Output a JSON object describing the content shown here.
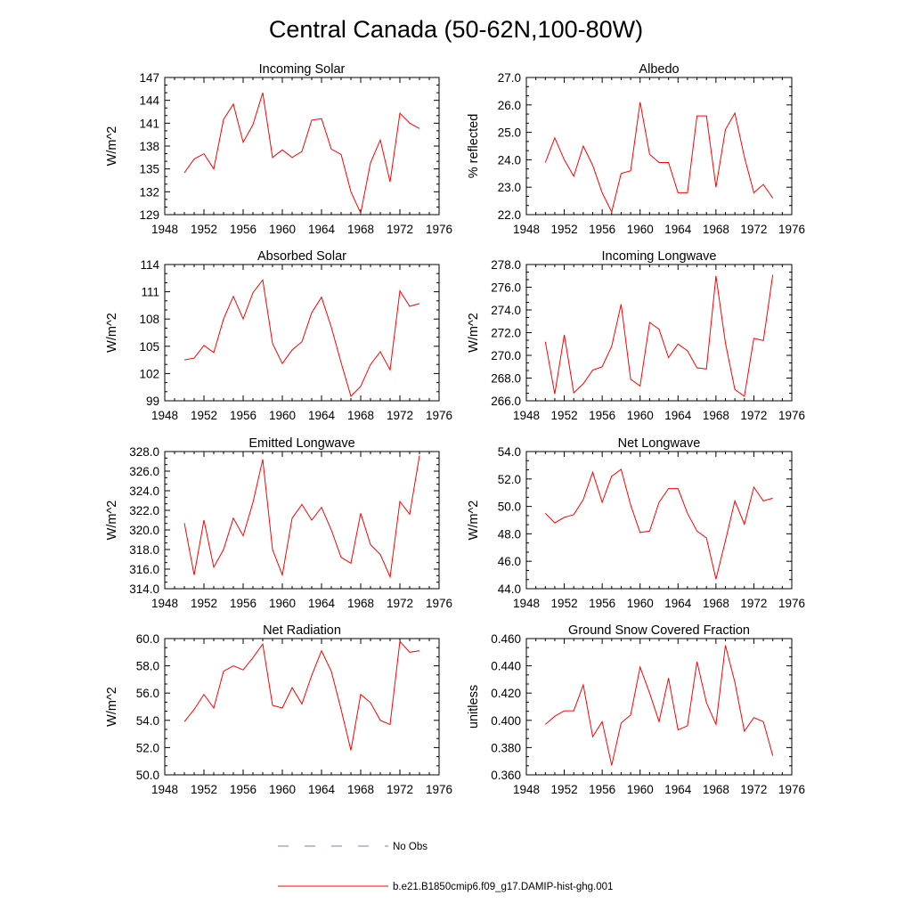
{
  "title": "Central Canada (50-62N,100-80W)",
  "chart_data": [
    {
      "type": "line",
      "title": "Incoming Solar",
      "ylabel": "W/m^2",
      "xlim": [
        1948,
        1976
      ],
      "xticks": [
        "1948",
        "1952",
        "1956",
        "1960",
        "1964",
        "1968",
        "1972",
        "1976"
      ],
      "ylim": [
        129,
        147
      ],
      "yticks": [
        "129",
        "132",
        "135",
        "138",
        "141",
        "144",
        "147"
      ],
      "series": [
        {
          "x": [
            1950,
            1951,
            1952,
            1953,
            1954,
            1955,
            1956,
            1957,
            1958,
            1959,
            1960,
            1961,
            1962,
            1963,
            1964,
            1965,
            1966,
            1967,
            1968,
            1969,
            1970,
            1971,
            1972,
            1973,
            1974
          ],
          "values": [
            134.5,
            136.3,
            137.0,
            135.0,
            141.5,
            143.5,
            138.5,
            140.8,
            145.0,
            136.5,
            137.5,
            136.5,
            137.3,
            141.4,
            141.6,
            137.6,
            136.9,
            132.0,
            129.2,
            135.8,
            138.8,
            133.3,
            142.3,
            141.0,
            140.3
          ]
        }
      ]
    },
    {
      "type": "line",
      "title": "Albedo",
      "ylabel": "% reflected",
      "xlim": [
        1948,
        1976
      ],
      "xticks": [
        "1948",
        "1952",
        "1956",
        "1960",
        "1964",
        "1968",
        "1972",
        "1976"
      ],
      "ylim": [
        22.0,
        27.0
      ],
      "yticks": [
        "22.0",
        "23.0",
        "24.0",
        "25.0",
        "26.0",
        "27.0"
      ],
      "series": [
        {
          "x": [
            1950,
            1951,
            1952,
            1953,
            1954,
            1955,
            1956,
            1957,
            1958,
            1959,
            1960,
            1961,
            1962,
            1963,
            1964,
            1965,
            1966,
            1967,
            1968,
            1969,
            1970,
            1971,
            1972,
            1973,
            1974
          ],
          "values": [
            23.9,
            24.8,
            24.0,
            23.4,
            24.5,
            23.8,
            22.8,
            22.1,
            23.5,
            23.6,
            26.1,
            24.2,
            23.9,
            23.9,
            22.8,
            22.8,
            25.6,
            25.6,
            23.0,
            25.1,
            25.7,
            24.1,
            22.8,
            23.1,
            22.6
          ]
        }
      ]
    },
    {
      "type": "line",
      "title": "Absorbed Solar",
      "ylabel": "W/m^2",
      "xlim": [
        1948,
        1976
      ],
      "xticks": [
        "1948",
        "1952",
        "1956",
        "1960",
        "1964",
        "1968",
        "1972",
        "1976"
      ],
      "ylim": [
        99,
        114
      ],
      "yticks": [
        "99",
        "102",
        "105",
        "108",
        "111",
        "114"
      ],
      "series": [
        {
          "x": [
            1950,
            1951,
            1952,
            1953,
            1954,
            1955,
            1956,
            1957,
            1958,
            1959,
            1960,
            1961,
            1962,
            1963,
            1964,
            1965,
            1966,
            1967,
            1968,
            1969,
            1970,
            1971,
            1972,
            1973,
            1974
          ],
          "values": [
            103.5,
            103.7,
            105.1,
            104.3,
            108.0,
            110.5,
            108.0,
            110.9,
            112.3,
            105.3,
            103.1,
            104.6,
            105.5,
            108.7,
            110.4,
            107.1,
            103.2,
            99.5,
            100.6,
            103.0,
            104.4,
            102.4,
            111.1,
            109.4,
            109.7
          ]
        }
      ]
    },
    {
      "type": "line",
      "title": "Incoming Longwave",
      "ylabel": "W/m^2",
      "xlim": [
        1948,
        1976
      ],
      "xticks": [
        "1948",
        "1952",
        "1956",
        "1960",
        "1964",
        "1968",
        "1972",
        "1976"
      ],
      "ylim": [
        266.0,
        278.0
      ],
      "yticks": [
        "266.0",
        "268.0",
        "270.0",
        "272.0",
        "274.0",
        "276.0",
        "278.0"
      ],
      "series": [
        {
          "x": [
            1950,
            1951,
            1952,
            1953,
            1954,
            1955,
            1956,
            1957,
            1958,
            1959,
            1960,
            1961,
            1962,
            1963,
            1964,
            1965,
            1966,
            1967,
            1968,
            1969,
            1970,
            1971,
            1972,
            1973,
            1974
          ],
          "values": [
            271.2,
            266.6,
            271.8,
            266.7,
            267.5,
            268.7,
            269.0,
            270.8,
            274.5,
            267.9,
            267.3,
            272.9,
            272.3,
            269.8,
            271.0,
            270.4,
            268.9,
            268.8,
            277.0,
            271.1,
            267.0,
            266.4,
            271.5,
            271.3,
            277.1
          ]
        }
      ]
    },
    {
      "type": "line",
      "title": "Emitted Longwave",
      "ylabel": "W/m^2",
      "xlim": [
        1948,
        1976
      ],
      "xticks": [
        "1948",
        "1952",
        "1956",
        "1960",
        "1964",
        "1968",
        "1972",
        "1976"
      ],
      "ylim": [
        314.0,
        328.0
      ],
      "yticks": [
        "314.0",
        "316.0",
        "318.0",
        "320.0",
        "322.0",
        "324.0",
        "326.0",
        "328.0"
      ],
      "series": [
        {
          "x": [
            1950,
            1951,
            1952,
            1953,
            1954,
            1955,
            1956,
            1957,
            1958,
            1959,
            1960,
            1961,
            1962,
            1963,
            1964,
            1965,
            1966,
            1967,
            1968,
            1969,
            1970,
            1971,
            1972,
            1973,
            1974
          ],
          "values": [
            320.7,
            315.4,
            321.0,
            316.2,
            318.0,
            321.2,
            319.4,
            322.8,
            327.2,
            318.0,
            315.4,
            321.2,
            322.6,
            321.0,
            322.3,
            320.0,
            317.2,
            316.6,
            321.7,
            318.5,
            317.5,
            315.2,
            322.9,
            321.6,
            327.6
          ]
        }
      ]
    },
    {
      "type": "line",
      "title": "Net Longwave",
      "ylabel": "W/m^2",
      "xlim": [
        1948,
        1976
      ],
      "xticks": [
        "1948",
        "1952",
        "1956",
        "1960",
        "1964",
        "1968",
        "1972",
        "1976"
      ],
      "ylim": [
        44.0,
        54.0
      ],
      "yticks": [
        "44.0",
        "46.0",
        "48.0",
        "50.0",
        "52.0",
        "54.0"
      ],
      "series": [
        {
          "x": [
            1950,
            1951,
            1952,
            1953,
            1954,
            1955,
            1956,
            1957,
            1958,
            1959,
            1960,
            1961,
            1962,
            1963,
            1964,
            1965,
            1966,
            1967,
            1968,
            1969,
            1970,
            1971,
            1972,
            1973,
            1974
          ],
          "values": [
            49.5,
            48.8,
            49.2,
            49.4,
            50.5,
            52.5,
            50.3,
            52.2,
            52.7,
            50.1,
            48.1,
            48.2,
            50.3,
            51.3,
            51.3,
            49.5,
            48.2,
            47.7,
            44.7,
            47.5,
            50.4,
            48.7,
            51.4,
            50.4,
            50.6
          ]
        }
      ]
    },
    {
      "type": "line",
      "title": "Net Radiation",
      "ylabel": "W/m^2",
      "xlim": [
        1948,
        1976
      ],
      "xticks": [
        "1948",
        "1952",
        "1956",
        "1960",
        "1964",
        "1968",
        "1972",
        "1976"
      ],
      "ylim": [
        50.0,
        60.0
      ],
      "yticks": [
        "50.0",
        "52.0",
        "54.0",
        "56.0",
        "58.0",
        "60.0"
      ],
      "series": [
        {
          "x": [
            1950,
            1951,
            1952,
            1953,
            1954,
            1955,
            1956,
            1957,
            1958,
            1959,
            1960,
            1961,
            1962,
            1963,
            1964,
            1965,
            1966,
            1967,
            1968,
            1969,
            1970,
            1971,
            1972,
            1973,
            1974
          ],
          "values": [
            53.9,
            54.8,
            55.9,
            54.9,
            57.6,
            58.0,
            57.7,
            58.6,
            59.6,
            55.1,
            54.9,
            56.4,
            55.2,
            57.3,
            59.1,
            57.6,
            54.8,
            51.8,
            55.9,
            55.3,
            54.0,
            53.7,
            59.8,
            59.0,
            59.1
          ]
        }
      ]
    },
    {
      "type": "line",
      "title": "Ground Snow Covered Fraction",
      "ylabel": "unitless",
      "xlim": [
        1948,
        1976
      ],
      "xticks": [
        "1948",
        "1952",
        "1956",
        "1960",
        "1964",
        "1968",
        "1972",
        "1976"
      ],
      "ylim": [
        0.36,
        0.46
      ],
      "yticks": [
        "0.360",
        "0.380",
        "0.400",
        "0.420",
        "0.440",
        "0.460"
      ],
      "series": [
        {
          "x": [
            1950,
            1951,
            1952,
            1953,
            1954,
            1955,
            1956,
            1957,
            1958,
            1959,
            1960,
            1961,
            1962,
            1963,
            1964,
            1965,
            1966,
            1967,
            1968,
            1969,
            1970,
            1971,
            1972,
            1973,
            1974
          ],
          "values": [
            0.397,
            0.403,
            0.407,
            0.407,
            0.426,
            0.388,
            0.399,
            0.367,
            0.398,
            0.404,
            0.439,
            0.42,
            0.399,
            0.431,
            0.393,
            0.396,
            0.443,
            0.413,
            0.397,
            0.455,
            0.428,
            0.392,
            0.402,
            0.399,
            0.374
          ]
        }
      ]
    }
  ],
  "legend": [
    {
      "label": "No Obs",
      "color": "#6f7fcf",
      "style": "dashed"
    },
    {
      "label": "b.e21.B1850cmip6.f09_g17.DAMIP-hist-ghg.001",
      "color": "#ff0000",
      "style": "solid"
    }
  ],
  "colors": {
    "series": "#ff0000",
    "obs": "#6f7fcf",
    "frame": "#000000"
  }
}
